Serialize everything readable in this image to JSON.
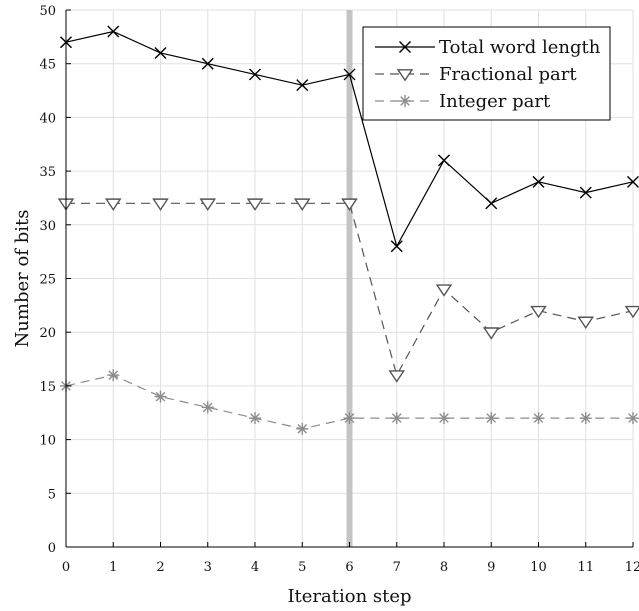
{
  "chart_data": {
    "type": "line",
    "xlabel": "Iteration step",
    "ylabel": "Number of bits",
    "x": [
      0,
      1,
      2,
      3,
      4,
      5,
      6,
      7,
      8,
      9,
      10,
      11,
      12
    ],
    "xlim": [
      0,
      12
    ],
    "ylim": [
      0,
      50
    ],
    "xticks": [
      0,
      1,
      2,
      3,
      4,
      5,
      6,
      7,
      8,
      9,
      10,
      11,
      12
    ],
    "yticks": [
      0,
      5,
      10,
      15,
      20,
      25,
      30,
      35,
      40,
      45,
      50
    ],
    "grid": true,
    "legend_position": "top-right",
    "vertical_marker_x": 6,
    "series": [
      {
        "name": "Total word length",
        "values": [
          47,
          48,
          46,
          45,
          44,
          43,
          44,
          28,
          36,
          32,
          34,
          33,
          34
        ],
        "color": "#000000",
        "marker": "x",
        "dash": "solid"
      },
      {
        "name": "Fractional part",
        "values": [
          32,
          32,
          32,
          32,
          32,
          32,
          32,
          16,
          24,
          20,
          22,
          21,
          22
        ],
        "color": "#555555",
        "marker": "triangle-down",
        "dash": "dashed"
      },
      {
        "name": "Integer part",
        "values": [
          15,
          16,
          14,
          13,
          12,
          11,
          12,
          12,
          12,
          12,
          12,
          12,
          12
        ],
        "color": "#8c8c8c",
        "marker": "asterisk",
        "dash": "dashed"
      }
    ]
  }
}
